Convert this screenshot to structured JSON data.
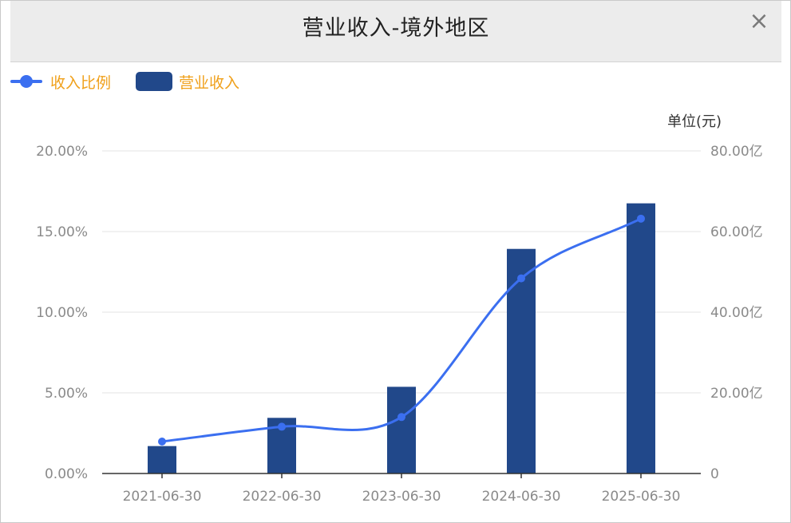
{
  "window": {
    "title": "营业收入-境外地区",
    "close_glyph": "×"
  },
  "legend": {
    "items": [
      {
        "label": "收入比例",
        "icon": "line-dot-icon",
        "color": "#3b6ff0"
      },
      {
        "label": "营业收入",
        "icon": "bar-icon",
        "color": "#21488a"
      }
    ]
  },
  "chart_data": {
    "type": "bar",
    "categories": [
      "2021-06-30",
      "2022-06-30",
      "2023-06-30",
      "2024-06-30",
      "2025-06-30"
    ],
    "series": [
      {
        "name": "营业收入",
        "type": "bar",
        "axis": "right",
        "color": "#21488a",
        "values": [
          6.8,
          13.8,
          21.5,
          55.7,
          67.0
        ]
      },
      {
        "name": "收入比例",
        "type": "line",
        "axis": "left",
        "color": "#3b6ff0",
        "smooth": true,
        "values": [
          1.98,
          2.9,
          3.5,
          12.1,
          15.8
        ]
      }
    ],
    "left_axis": {
      "min": 0,
      "max": 20,
      "ticks": [
        0,
        5,
        10,
        15,
        20
      ],
      "tick_labels": [
        "0.00%",
        "5.00%",
        "10.00%",
        "15.00%",
        "20.00%"
      ]
    },
    "right_axis": {
      "unit_label": "单位(元)",
      "min": 0,
      "max": 80,
      "ticks": [
        0,
        20,
        40,
        60,
        80
      ],
      "tick_labels": [
        "0",
        "20.00亿",
        "40.00亿",
        "60.00亿",
        "80.00亿"
      ]
    },
    "grid": true,
    "legend_position": "top-left"
  }
}
